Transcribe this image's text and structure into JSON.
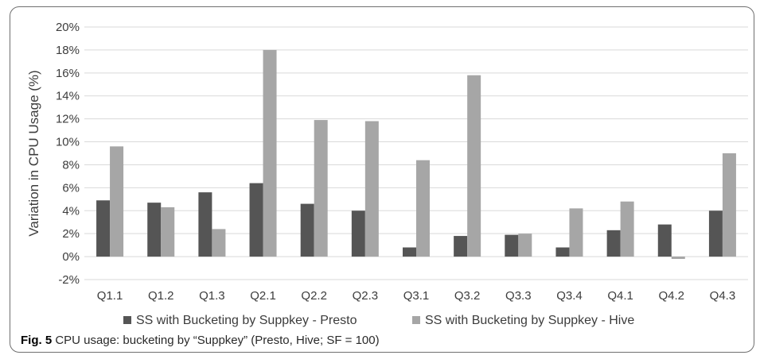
{
  "caption": {
    "figure_label": "Fig. 5",
    "text": "CPU usage: bucketing by “Suppkey” (Presto, Hive; SF = 100)"
  },
  "colors": {
    "presto": "#555555",
    "hive": "#a6a6a6",
    "grid": "#d9d9d9",
    "text": "#3c3c3c"
  },
  "chart_data": {
    "type": "bar",
    "title": "",
    "xlabel": "",
    "ylabel": "Variation in CPU Usage (%)",
    "ylim": [
      -2,
      20
    ],
    "ytick_step": 2,
    "ytick_suffix": "%",
    "grid": true,
    "legend_position": "bottom",
    "categories": [
      "Q1.1",
      "Q1.2",
      "Q1.3",
      "Q2.1",
      "Q2.2",
      "Q2.3",
      "Q3.1",
      "Q3.2",
      "Q3.3",
      "Q3.4",
      "Q4.1",
      "Q4.2",
      "Q4.3"
    ],
    "series": [
      {
        "name": "SS with Bucketing by Suppkey - Presto",
        "color": "#555555",
        "values": [
          4.9,
          4.7,
          5.6,
          6.4,
          4.6,
          4.0,
          0.8,
          1.8,
          1.9,
          0.8,
          2.3,
          2.8,
          4.0
        ]
      },
      {
        "name": "SS with Bucketing by Suppkey - Hive",
        "color": "#a6a6a6",
        "values": [
          9.6,
          4.3,
          2.4,
          18.0,
          11.9,
          11.8,
          8.4,
          15.8,
          2.0,
          4.2,
          4.8,
          -0.2,
          9.0
        ]
      }
    ]
  }
}
